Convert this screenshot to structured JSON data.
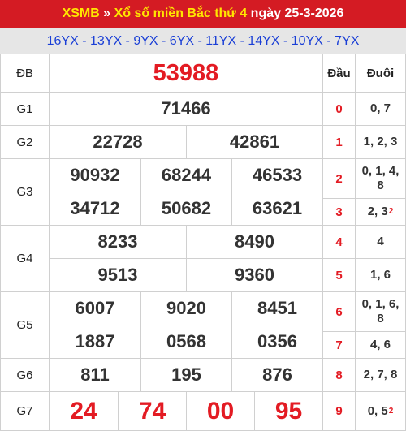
{
  "header": {
    "brand": "XSMB",
    "sep": " » ",
    "title": "Xổ số miền Bắc thứ 4",
    "date": " ngày 25-3-2026"
  },
  "codes": "16YX - 13YX - 9YX - 6YX - 11YX - 14YX - 10YX - 7YX",
  "labels": {
    "db": "ĐB",
    "g1": "G1",
    "g2": "G2",
    "g3": "G3",
    "g4": "G4",
    "g5": "G5",
    "g6": "G6",
    "g7": "G7",
    "dau": "Đầu",
    "duoi": "Đuôi"
  },
  "prizes": {
    "db": "53988",
    "g1": "71466",
    "g2": [
      "22728",
      "42861"
    ],
    "g3": [
      "90932",
      "68244",
      "46533",
      "34712",
      "50682",
      "63621"
    ],
    "g4": [
      "8233",
      "8490",
      "9513",
      "9360"
    ],
    "g5": [
      "6007",
      "9020",
      "8451",
      "1887",
      "0568",
      "0356"
    ],
    "g6": [
      "811",
      "195",
      "876"
    ],
    "g7": [
      "24",
      "74",
      "00",
      "95"
    ]
  },
  "loto": [
    {
      "dau": "0",
      "duoi": "0, 7"
    },
    {
      "dau": "1",
      "duoi": "1, 2, 3"
    },
    {
      "dau": "2",
      "duoi": "0, 1, 4, 8"
    },
    {
      "dau": "3",
      "duoi": "2, 3",
      "sup": "2"
    },
    {
      "dau": "4",
      "duoi": "4"
    },
    {
      "dau": "5",
      "duoi": "1, 6"
    },
    {
      "dau": "6",
      "duoi": "0, 1, 6, 8"
    },
    {
      "dau": "7",
      "duoi": "4, 6"
    },
    {
      "dau": "8",
      "duoi": "2, 7, 8"
    },
    {
      "dau": "9",
      "duoi": "0, 5",
      "sup": "2"
    }
  ],
  "colors": {
    "header_bg": "#d41b23",
    "accent_yellow": "#ffe600",
    "code_blue": "#1a3fd6",
    "red_number": "#e31b23"
  }
}
